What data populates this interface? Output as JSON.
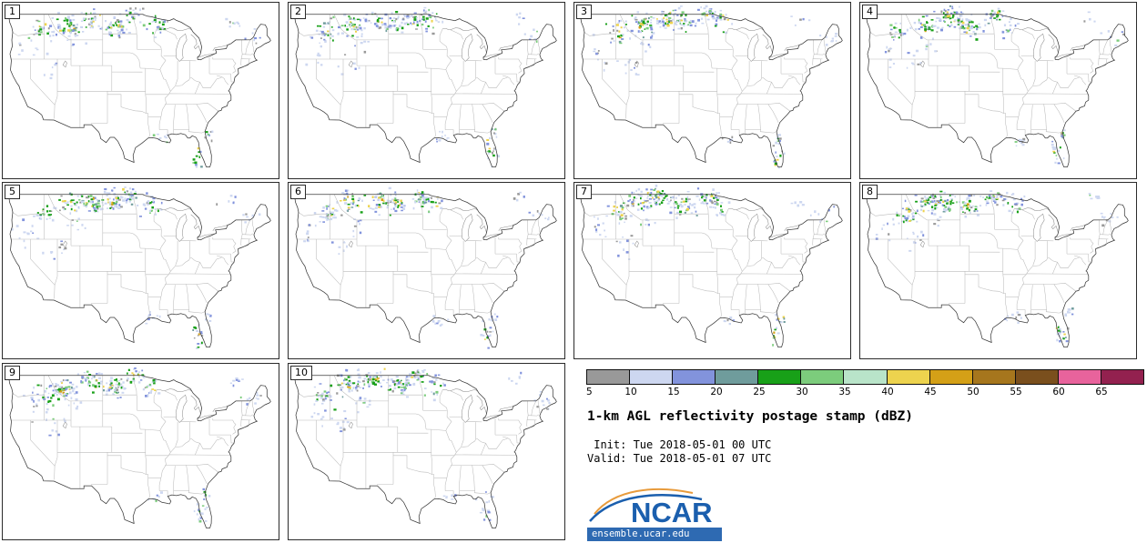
{
  "panels": [
    {
      "label": "1"
    },
    {
      "label": "2"
    },
    {
      "label": "3"
    },
    {
      "label": "4"
    },
    {
      "label": "5"
    },
    {
      "label": "6"
    },
    {
      "label": "7"
    },
    {
      "label": "8"
    },
    {
      "label": "9"
    },
    {
      "label": "10"
    }
  ],
  "colorbar": {
    "ticks": [
      "5",
      "10",
      "15",
      "20",
      "25",
      "30",
      "35",
      "40",
      "45",
      "50",
      "55",
      "60",
      "65"
    ],
    "colors": [
      "#999999",
      "#cdd7f0",
      "#8293dc",
      "#6f9c9c",
      "#18a018",
      "#7ccc7c",
      "#b9e4c9",
      "#edd34e",
      "#d4a017",
      "#a6761d",
      "#7a4f1d",
      "#e8639c",
      "#93214f"
    ]
  },
  "legend": {
    "title": "1-km AGL reflectivity postage stamp (dBZ)",
    "init_line": " Init: Tue 2018-05-01 00 UTC",
    "valid_line": "Valid: Tue 2018-05-01 07 UTC"
  },
  "branding": {
    "logo_text": "NCAR",
    "site": "ensemble.ucar.edu",
    "blue": "#1b5fae",
    "strip_blue": "#2e6ab2",
    "arc_orange": "#e89b3c"
  }
}
